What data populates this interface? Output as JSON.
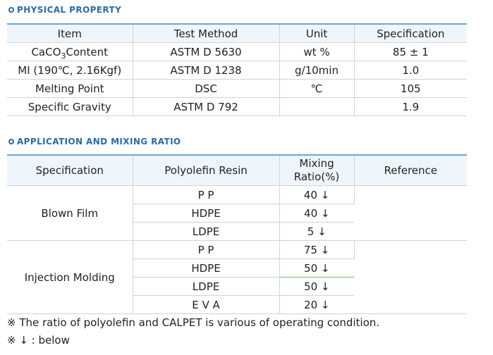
{
  "physical": {
    "title": "PHYSICAL PROPERTY",
    "headers": [
      "Item",
      "Test Method",
      "Unit",
      "Specification"
    ],
    "rows": [
      {
        "item_pre": "CaCO",
        "item_sub": "3",
        "item_post": "Content",
        "method": "ASTM D 5630",
        "unit": "wt %",
        "spec": "85 ± 1"
      },
      {
        "item": "MI (190℃, 2.16Kgf)",
        "method": "ASTM D 1238",
        "unit": "g/10min",
        "spec": "1.0"
      },
      {
        "item": "Melting Point",
        "method": "DSC",
        "unit": "℃",
        "spec": "105"
      },
      {
        "item": "Specific Gravity",
        "method": "ASTM D 792",
        "unit": "",
        "spec": "1.9"
      }
    ]
  },
  "application": {
    "title": "APPLICATION AND MIXING RATIO",
    "headers": [
      "Specification",
      "Polyolefin Resin",
      "Mixing Ratio(%)",
      "Reference"
    ],
    "groups": [
      {
        "name": "Blown Film",
        "rows": [
          {
            "resin": "P P",
            "ratio": "40 ↓"
          },
          {
            "resin": "HDPE",
            "ratio": "40 ↓"
          },
          {
            "resin": "LDPE",
            "ratio": "5 ↓"
          }
        ]
      },
      {
        "name": "Injection Molding",
        "rows": [
          {
            "resin": "P P",
            "ratio": "75 ↓"
          },
          {
            "resin": "HDPE",
            "ratio": "50 ↓"
          },
          {
            "resin": "LDPE",
            "ratio": "50 ↓"
          },
          {
            "resin": "E V A",
            "ratio": "20 ↓"
          }
        ]
      }
    ]
  },
  "notes": [
    "※ The ratio of polyolefin and CALPET is various of operating condition.",
    "※ ↓ : below"
  ],
  "colors": {
    "accent": "#2d6aa3",
    "header_bg": "#eef5fb",
    "rule": "#6fa6d0"
  }
}
